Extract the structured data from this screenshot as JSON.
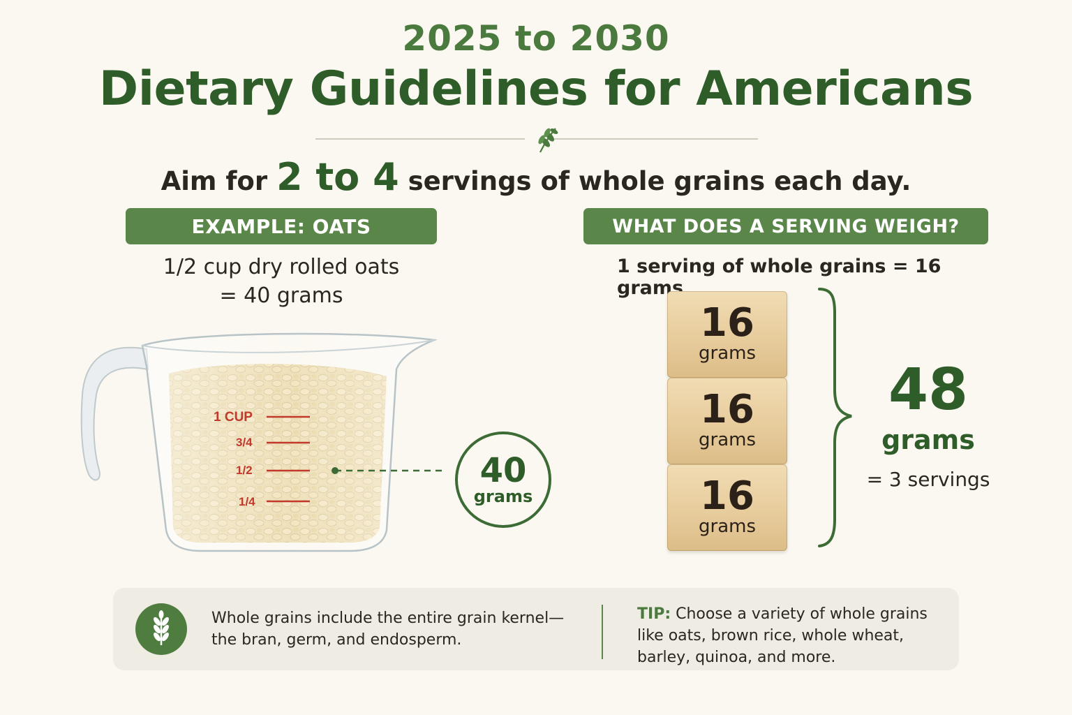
{
  "header": {
    "years": "2025 to 2030",
    "title": "Dietary Guidelines for Americans",
    "aim_prefix": "Aim for",
    "aim_highlight": "2 to 4",
    "aim_suffix": "servings of whole grains each day."
  },
  "left_panel": {
    "banner": "EXAMPLE: OATS",
    "line1": "1/2 cup dry rolled oats",
    "line2": "= 40 grams",
    "cup_marks": [
      "1 CUP",
      "3/4",
      "1/2",
      "1/4"
    ],
    "badge_value": "40",
    "badge_unit": "grams"
  },
  "right_panel": {
    "banner": "WHAT DOES A SERVING WEIGH?",
    "serving_line": "1 serving of whole grains = 16 grams",
    "blocks": [
      {
        "value": "16",
        "unit": "grams"
      },
      {
        "value": "16",
        "unit": "grams"
      },
      {
        "value": "16",
        "unit": "grams"
      }
    ],
    "total_value": "48",
    "total_unit": "grams",
    "total_servings": "= 3 servings"
  },
  "footer": {
    "fact": "Whole grains include the entire grain kernel—the bran, germ, and endosperm.",
    "tip_label": "TIP:",
    "tip_text": "Choose a variety of whole grains like oats, brown rice, whole wheat, barley, quinoa, and more."
  },
  "colors": {
    "accent_dark": "#2f5d2a",
    "accent": "#5a864a",
    "mark_red": "#c0392b",
    "background": "#fbf8f1"
  },
  "icons": [
    "leaf-icon",
    "wheat-icon"
  ]
}
